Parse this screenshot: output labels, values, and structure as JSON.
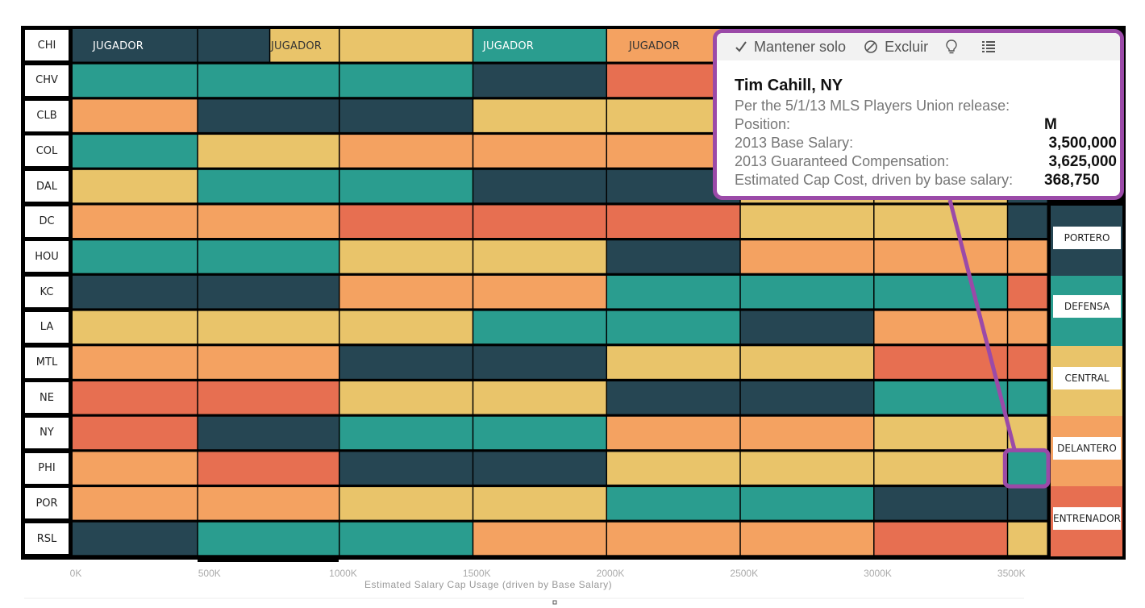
{
  "colors": {
    "PORTERO": "#264653",
    "DEFENSA": "#2a9d8f",
    "CENTRAL": "#e9c46a",
    "DELANTERO": "#f4a261",
    "ENTRENADOR": "#e76f51"
  },
  "cell_labels": [
    "JUGADOR",
    "JUGADOR",
    "JUGADOR",
    "JUGADOR"
  ],
  "tooltip": {
    "actions": [
      {
        "icon": "check-icon",
        "label": "Mantener solo"
      },
      {
        "icon": "exclude-icon",
        "label": "Excluir"
      },
      {
        "icon": "lightbulb-icon",
        "label": ""
      },
      {
        "icon": "table-icon",
        "label": ""
      }
    ],
    "player": "Tim Cahill, NY",
    "source_note": "Per the 5/1/13 MLS Players Union release:",
    "rows": [
      {
        "label": "Position:",
        "value": "M"
      },
      {
        "label": "2013 Base Salary:",
        "value": "3,500,000"
      },
      {
        "label": "2013 Guaranteed Compensation:",
        "value": "3,625,000"
      },
      {
        "label": "Estimated Cap Cost, driven by base salary:",
        "value": "368,750"
      }
    ]
  },
  "legend": [
    "PORTERO",
    "DEFENSA",
    "CENTRAL",
    "DELANTERO",
    "ENTRENADOR"
  ],
  "chart_data": {
    "type": "bar",
    "orientation": "horizontal-stacked",
    "xlabel": "Estimated Salary Cap Usage (driven by Base Salary)",
    "x_ticks": [
      "0K",
      "500K",
      "1000K",
      "1500K",
      "2000K",
      "2500K",
      "3000K",
      "3500K"
    ],
    "xlim": [
      0,
      3650
    ],
    "x_unit": "K",
    "categories": [
      "CHI",
      "CHV",
      "CLB",
      "COL",
      "DAL",
      "DC",
      "HOU",
      "KC",
      "LA",
      "MTL",
      "NE",
      "NY",
      "PHI",
      "POR",
      "RSL"
    ],
    "segments": {
      "CHI": [
        [
          0,
          470,
          "PORTERO"
        ],
        [
          470,
          740,
          "PORTERO"
        ],
        [
          740,
          1000,
          "CENTRAL"
        ],
        [
          1000,
          1500,
          "CENTRAL"
        ],
        [
          1500,
          2000,
          "DEFENSA"
        ],
        [
          2000,
          2500,
          "DELANTERO"
        ],
        [
          2500,
          3000,
          "CENTRAL"
        ],
        [
          3000,
          3500,
          "CENTRAL"
        ],
        [
          3500,
          3650,
          "PORTERO"
        ]
      ],
      "CHV": [
        [
          0,
          470,
          "DEFENSA"
        ],
        [
          470,
          1000,
          "DEFENSA"
        ],
        [
          1000,
          1500,
          "DEFENSA"
        ],
        [
          1500,
          2000,
          "PORTERO"
        ],
        [
          2000,
          2500,
          "ENTRENADOR"
        ],
        [
          2500,
          3000,
          "CENTRAL"
        ],
        [
          3000,
          3500,
          "CENTRAL"
        ],
        [
          3500,
          3650,
          "PORTERO"
        ]
      ],
      "CLB": [
        [
          0,
          470,
          "DELANTERO"
        ],
        [
          470,
          1000,
          "PORTERO"
        ],
        [
          1000,
          1500,
          "PORTERO"
        ],
        [
          1500,
          2000,
          "CENTRAL"
        ],
        [
          2000,
          2500,
          "CENTRAL"
        ],
        [
          2500,
          3000,
          "CENTRAL"
        ],
        [
          3000,
          3500,
          "CENTRAL"
        ],
        [
          3500,
          3650,
          "PORTERO"
        ]
      ],
      "COL": [
        [
          0,
          470,
          "DEFENSA"
        ],
        [
          470,
          1000,
          "CENTRAL"
        ],
        [
          1000,
          1500,
          "DELANTERO"
        ],
        [
          1500,
          2000,
          "DELANTERO"
        ],
        [
          2000,
          2500,
          "DELANTERO"
        ],
        [
          2500,
          3000,
          "CENTRAL"
        ],
        [
          3000,
          3500,
          "CENTRAL"
        ],
        [
          3500,
          3650,
          "PORTERO"
        ]
      ],
      "DAL": [
        [
          0,
          470,
          "CENTRAL"
        ],
        [
          470,
          1000,
          "DEFENSA"
        ],
        [
          1000,
          1500,
          "DEFENSA"
        ],
        [
          1500,
          2000,
          "PORTERO"
        ],
        [
          2000,
          2500,
          "PORTERO"
        ],
        [
          2500,
          3000,
          "CENTRAL"
        ],
        [
          3000,
          3500,
          "CENTRAL"
        ],
        [
          3500,
          3650,
          "PORTERO"
        ]
      ],
      "DC": [
        [
          0,
          470,
          "DELANTERO"
        ],
        [
          470,
          1000,
          "DELANTERO"
        ],
        [
          1000,
          1500,
          "ENTRENADOR"
        ],
        [
          1500,
          2000,
          "ENTRENADOR"
        ],
        [
          2000,
          2500,
          "ENTRENADOR"
        ],
        [
          2500,
          3000,
          "CENTRAL"
        ],
        [
          3000,
          3500,
          "CENTRAL"
        ],
        [
          3500,
          3650,
          "PORTERO"
        ]
      ],
      "HOU": [
        [
          0,
          470,
          "DEFENSA"
        ],
        [
          470,
          1000,
          "DEFENSA"
        ],
        [
          1000,
          1500,
          "CENTRAL"
        ],
        [
          1500,
          2000,
          "CENTRAL"
        ],
        [
          2000,
          2500,
          "PORTERO"
        ],
        [
          2500,
          3000,
          "DELANTERO"
        ],
        [
          3000,
          3500,
          "DELANTERO"
        ],
        [
          3500,
          3650,
          "DELANTERO"
        ]
      ],
      "KC": [
        [
          0,
          470,
          "PORTERO"
        ],
        [
          470,
          1000,
          "PORTERO"
        ],
        [
          1000,
          1500,
          "DELANTERO"
        ],
        [
          1500,
          2000,
          "DELANTERO"
        ],
        [
          2000,
          2500,
          "DEFENSA"
        ],
        [
          2500,
          3000,
          "DEFENSA"
        ],
        [
          3000,
          3500,
          "DEFENSA"
        ],
        [
          3500,
          3650,
          "ENTRENADOR"
        ]
      ],
      "LA": [
        [
          0,
          470,
          "CENTRAL"
        ],
        [
          470,
          1000,
          "CENTRAL"
        ],
        [
          1000,
          1500,
          "CENTRAL"
        ],
        [
          1500,
          2000,
          "DEFENSA"
        ],
        [
          2000,
          2500,
          "DEFENSA"
        ],
        [
          2500,
          3000,
          "PORTERO"
        ],
        [
          3000,
          3500,
          "DELANTERO"
        ],
        [
          3500,
          3650,
          "DELANTERO"
        ]
      ],
      "MTL": [
        [
          0,
          470,
          "DELANTERO"
        ],
        [
          470,
          1000,
          "DELANTERO"
        ],
        [
          1000,
          1500,
          "PORTERO"
        ],
        [
          1500,
          2000,
          "PORTERO"
        ],
        [
          2000,
          2500,
          "CENTRAL"
        ],
        [
          2500,
          3000,
          "CENTRAL"
        ],
        [
          3000,
          3500,
          "ENTRENADOR"
        ],
        [
          3500,
          3650,
          "ENTRENADOR"
        ]
      ],
      "NE": [
        [
          0,
          470,
          "ENTRENADOR"
        ],
        [
          470,
          1000,
          "ENTRENADOR"
        ],
        [
          1000,
          1500,
          "CENTRAL"
        ],
        [
          1500,
          2000,
          "CENTRAL"
        ],
        [
          2000,
          2500,
          "PORTERO"
        ],
        [
          2500,
          3000,
          "PORTERO"
        ],
        [
          3000,
          3500,
          "DEFENSA"
        ],
        [
          3500,
          3650,
          "DEFENSA"
        ]
      ],
      "NY": [
        [
          0,
          470,
          "ENTRENADOR"
        ],
        [
          470,
          1000,
          "PORTERO"
        ],
        [
          1000,
          1500,
          "DEFENSA"
        ],
        [
          1500,
          2000,
          "DEFENSA"
        ],
        [
          2000,
          2500,
          "DELANTERO"
        ],
        [
          2500,
          3000,
          "DELANTERO"
        ],
        [
          3000,
          3500,
          "CENTRAL"
        ],
        [
          3500,
          3650,
          "CENTRAL"
        ]
      ],
      "PHI": [
        [
          0,
          470,
          "DELANTERO"
        ],
        [
          470,
          1000,
          "ENTRENADOR"
        ],
        [
          1000,
          1500,
          "PORTERO"
        ],
        [
          1500,
          2000,
          "PORTERO"
        ],
        [
          2000,
          2500,
          "CENTRAL"
        ],
        [
          2500,
          3000,
          "CENTRAL"
        ],
        [
          3000,
          3500,
          "CENTRAL"
        ],
        [
          3500,
          3650,
          "DEFENSA"
        ]
      ],
      "POR": [
        [
          0,
          470,
          "DELANTERO"
        ],
        [
          470,
          1000,
          "DELANTERO"
        ],
        [
          1000,
          1500,
          "CENTRAL"
        ],
        [
          1500,
          2000,
          "CENTRAL"
        ],
        [
          2000,
          2500,
          "DEFENSA"
        ],
        [
          2500,
          3000,
          "DEFENSA"
        ],
        [
          3000,
          3500,
          "PORTERO"
        ],
        [
          3500,
          3650,
          "PORTERO"
        ]
      ],
      "RSL": [
        [
          0,
          470,
          "PORTERO"
        ],
        [
          470,
          1000,
          "DEFENSA"
        ],
        [
          1000,
          1500,
          "DEFENSA"
        ],
        [
          1500,
          2000,
          "DELANTERO"
        ],
        [
          2000,
          2500,
          "DELANTERO"
        ],
        [
          2500,
          3000,
          "DELANTERO"
        ],
        [
          3000,
          3500,
          "ENTRENADOR"
        ],
        [
          3500,
          3650,
          "CENTRAL"
        ]
      ]
    },
    "highlighted": {
      "team": "PHI",
      "segment_index": 7
    }
  }
}
